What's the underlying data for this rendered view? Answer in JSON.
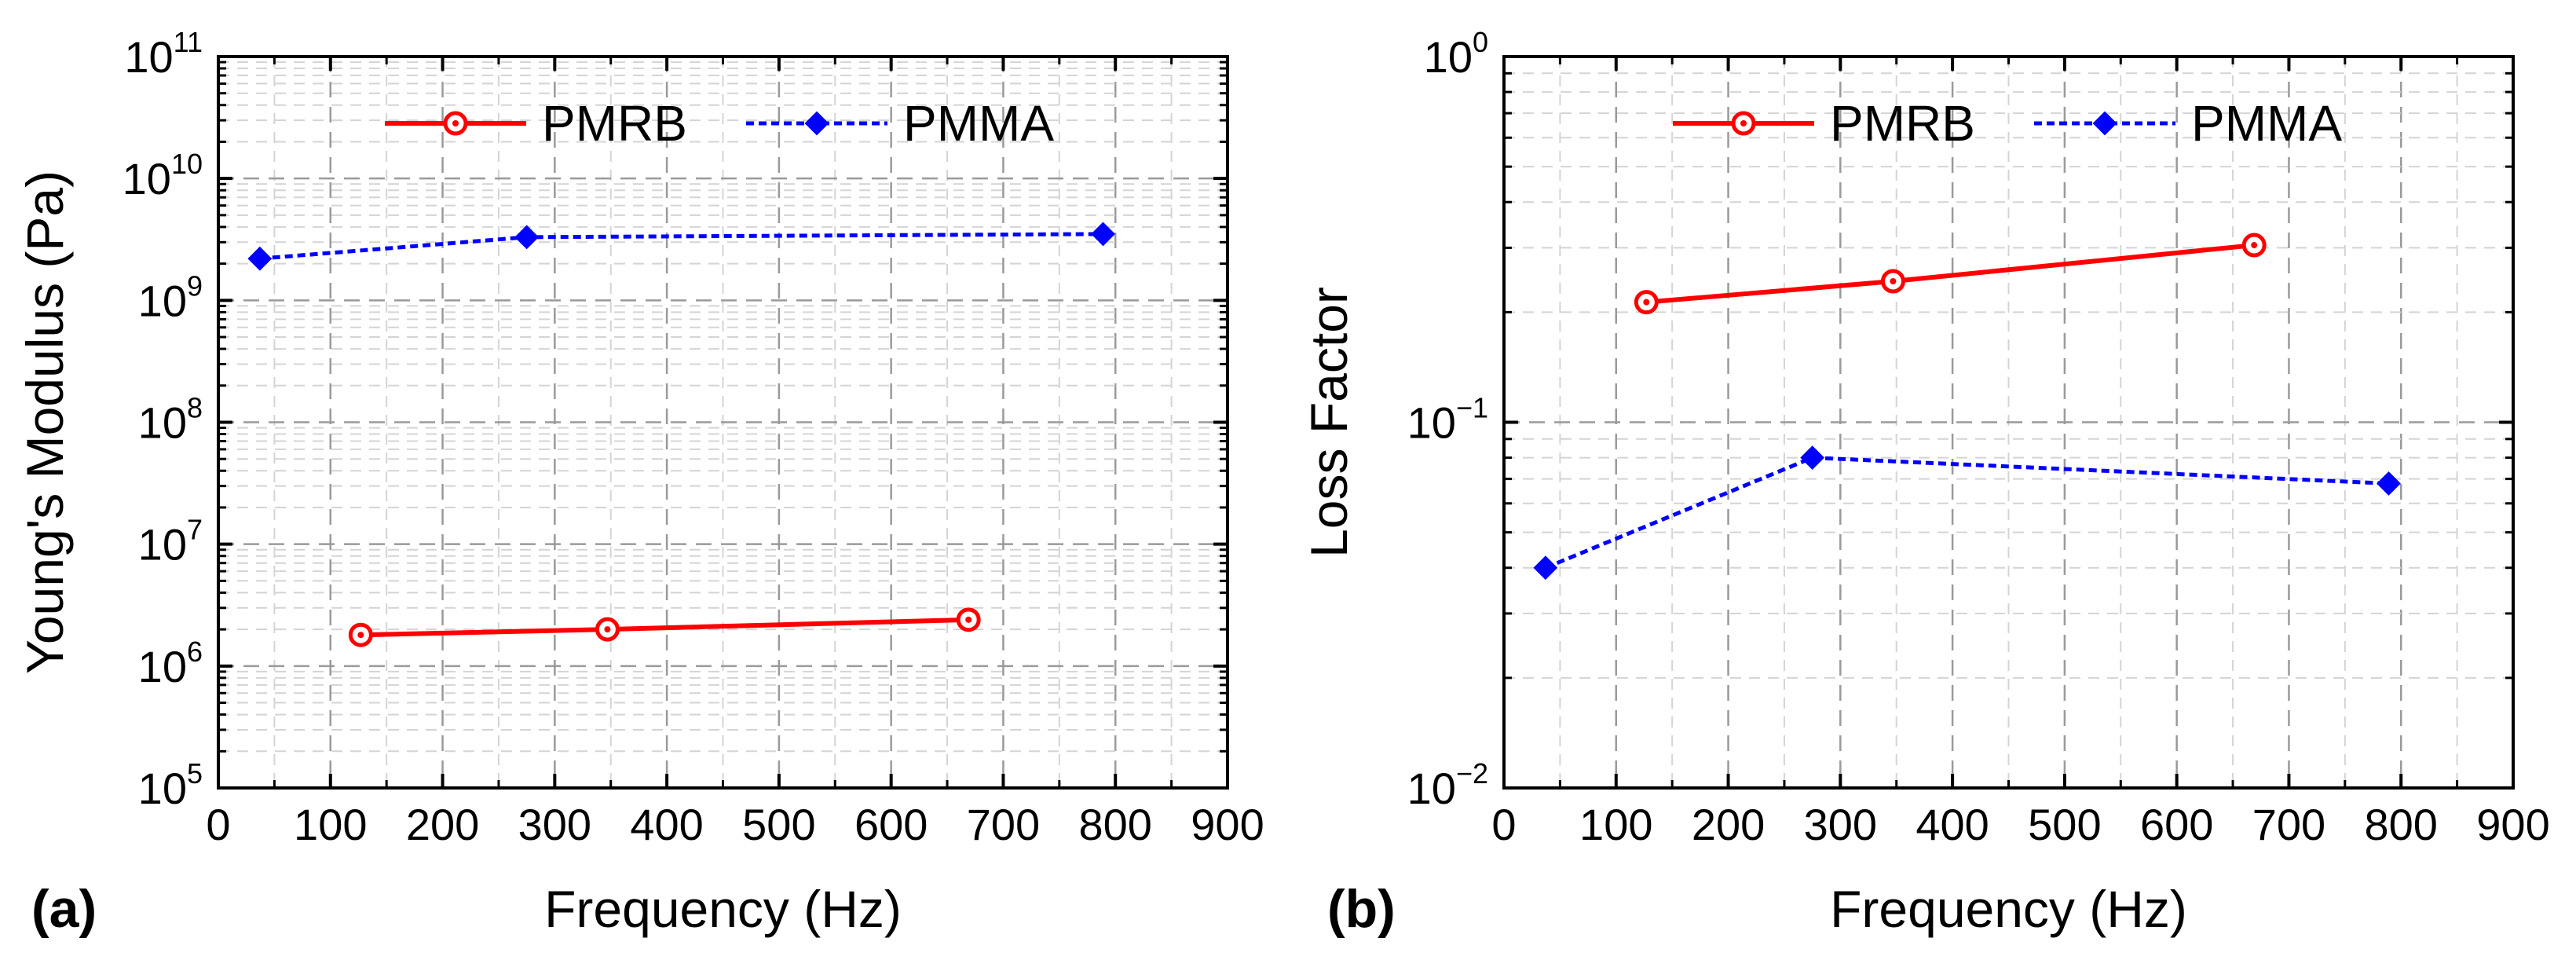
{
  "chart_data": [
    {
      "type": "line",
      "panel_label": "(a)",
      "xlabel": "Frequency (Hz)",
      "ylabel": "Young's Modulus (Pa)",
      "xlim": [
        0,
        900
      ],
      "x_ticks": [
        0,
        100,
        200,
        300,
        400,
        500,
        600,
        700,
        800,
        900
      ],
      "y_scale": "log",
      "ylim": [
        100000,
        100000000000
      ],
      "y_tick_exponents": [
        5,
        6,
        7,
        8,
        9,
        10,
        11
      ],
      "grid": true,
      "legend_position": "top",
      "series": [
        {
          "name": "PMRB",
          "color": "#ff0000",
          "line_style": "solid",
          "marker": "open-circle-dot",
          "x": [
            127,
            347,
            669
          ],
          "y": [
            1800000,
            2000000,
            2400000
          ]
        },
        {
          "name": "PMMA",
          "color": "#0000ff",
          "line_style": "dotted",
          "marker": "filled-diamond",
          "x": [
            37,
            275,
            789
          ],
          "y": [
            2200000000,
            3300000000,
            3500000000
          ]
        }
      ]
    },
    {
      "type": "line",
      "panel_label": "(b)",
      "xlabel": "Frequency (Hz)",
      "ylabel": "Loss Factor",
      "xlim": [
        0,
        900
      ],
      "x_ticks": [
        0,
        100,
        200,
        300,
        400,
        500,
        600,
        700,
        800,
        900
      ],
      "y_scale": "log",
      "ylim": [
        0.01,
        1
      ],
      "y_tick_exponents": [
        -2,
        -1,
        0
      ],
      "grid": true,
      "legend_position": "top",
      "series": [
        {
          "name": "PMRB",
          "color": "#ff0000",
          "line_style": "solid",
          "marker": "open-circle-dot",
          "x": [
            127,
            347,
            669
          ],
          "y": [
            0.213,
            0.243,
            0.305
          ]
        },
        {
          "name": "PMMA",
          "color": "#0000ff",
          "line_style": "dotted",
          "marker": "filled-diamond",
          "x": [
            37,
            275,
            789
          ],
          "y": [
            0.04,
            0.08,
            0.068
          ]
        }
      ]
    }
  ]
}
